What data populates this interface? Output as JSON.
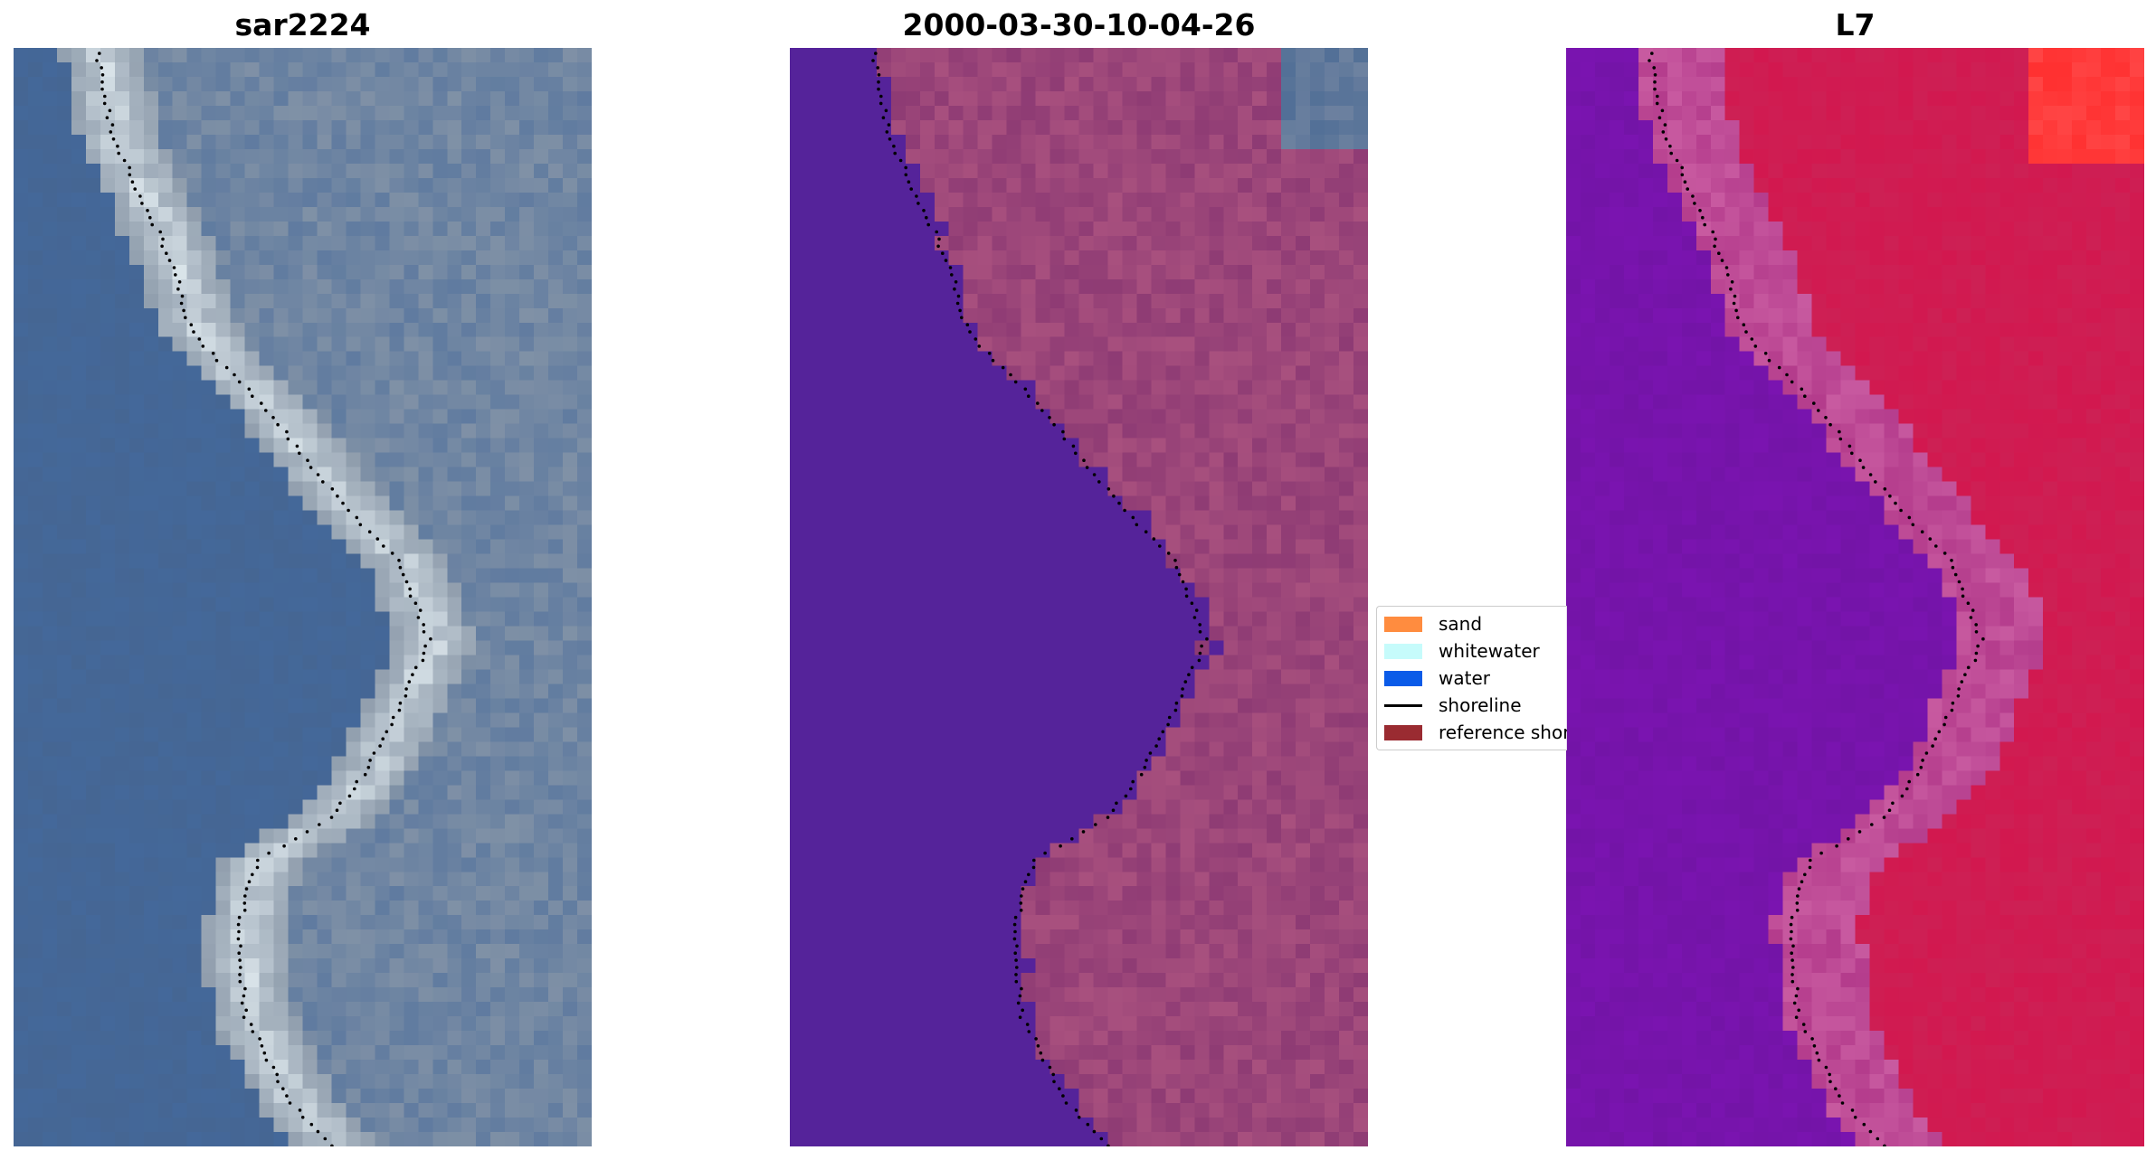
{
  "panels": [
    {
      "title": "sar2224",
      "kind": "rgb"
    },
    {
      "title": "2000-03-30-10-04-26",
      "kind": "classified"
    },
    {
      "title": "L7",
      "kind": "index"
    }
  ],
  "legend": {
    "items": [
      {
        "label": "sand",
        "color": "#ff8c3f",
        "type": "patch"
      },
      {
        "label": "whitewater",
        "color": "#c6fbfb",
        "type": "patch"
      },
      {
        "label": "water",
        "color": "#0a5be8",
        "type": "patch"
      },
      {
        "label": "shoreline",
        "color": "#000000",
        "type": "line"
      },
      {
        "label": "reference shoreline",
        "color": "#9a2b31",
        "type": "patch"
      }
    ]
  },
  "colors": {
    "water_class": "#55239a",
    "land_class": "#8e3b74",
    "land_class_light": "#a8507e",
    "l7_water": "#7a14b0",
    "l7_land": "#d2184f",
    "l7_hot": "#ff3030",
    "rgb_water": "#44689a",
    "rgb_land": "#8a98a8",
    "rgb_foam": "#dfe9ee",
    "shoreline_dots": "#000000"
  }
}
